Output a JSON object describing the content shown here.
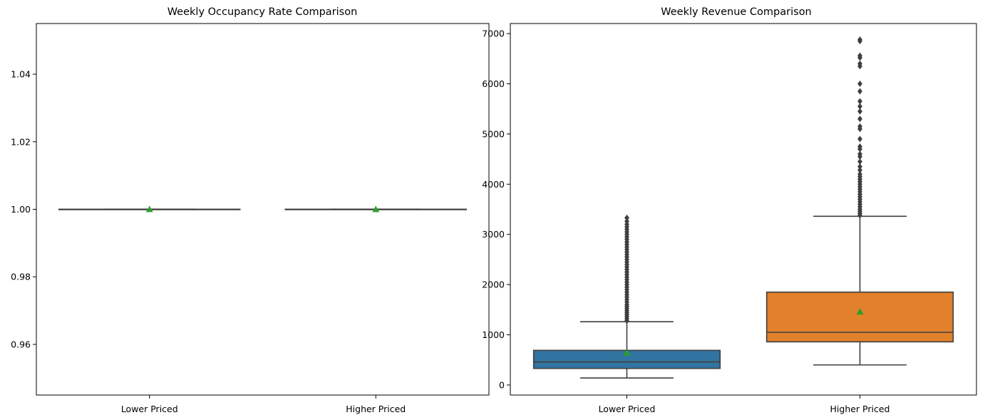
{
  "chart_data": [
    {
      "type": "box",
      "title": "Weekly Occupancy Rate Comparison",
      "xlabel": "",
      "ylabel": "",
      "ylim": [
        0.945,
        1.055
      ],
      "yticks": [
        0.96,
        0.98,
        1.0,
        1.02,
        1.04
      ],
      "ytick_labels": [
        "0.96",
        "0.98",
        "1.00",
        "1.02",
        "1.04"
      ],
      "categories": [
        "Lower Priced",
        "Higher Priced"
      ],
      "boxes": [
        {
          "category": "Lower Priced",
          "whisker_low": 1.0,
          "q1": 1.0,
          "median": 1.0,
          "q3": 1.0,
          "whisker_high": 1.0,
          "mean": 1.0,
          "color": "#1f77b4",
          "outliers": []
        },
        {
          "category": "Higher Priced",
          "whisker_low": 1.0,
          "q1": 1.0,
          "median": 1.0,
          "q3": 1.0,
          "whisker_high": 1.0,
          "mean": 1.0,
          "color": "#ff7f0e",
          "outliers": []
        }
      ],
      "grid": false
    },
    {
      "type": "box",
      "title": "Weekly Revenue Comparison",
      "xlabel": "",
      "ylabel": "",
      "ylim": [
        -200,
        7200
      ],
      "yticks": [
        0,
        1000,
        2000,
        3000,
        4000,
        5000,
        6000,
        7000
      ],
      "ytick_labels": [
        "0",
        "1000",
        "2000",
        "3000",
        "4000",
        "5000",
        "6000",
        "7000"
      ],
      "categories": [
        "Lower Priced",
        "Higher Priced"
      ],
      "boxes": [
        {
          "category": "Lower Priced",
          "whisker_low": 140,
          "q1": 330,
          "median": 460,
          "q3": 690,
          "whisker_high": 1260,
          "mean": 640,
          "color": "#3274a1",
          "outliers": [
            1280,
            1320,
            1360,
            1400,
            1440,
            1480,
            1520,
            1560,
            1600,
            1650,
            1700,
            1750,
            1800,
            1850,
            1900,
            1950,
            2000,
            2050,
            2100,
            2150,
            2200,
            2250,
            2300,
            2350,
            2400,
            2450,
            2500,
            2550,
            2600,
            2650,
            2700,
            2750,
            2800,
            2850,
            2900,
            2950,
            3000,
            3050,
            3100,
            3150,
            3200,
            3260,
            3330
          ]
        },
        {
          "category": "Higher Priced",
          "whisker_low": 400,
          "q1": 860,
          "median": 1050,
          "q3": 1850,
          "whisker_high": 3360,
          "mean": 1460,
          "color": "#e1812c",
          "outliers": [
            3380,
            3420,
            3460,
            3500,
            3550,
            3600,
            3650,
            3700,
            3750,
            3800,
            3850,
            3900,
            3950,
            4000,
            4050,
            4100,
            4150,
            4200,
            4280,
            4350,
            4450,
            4550,
            4600,
            4700,
            4750,
            4900,
            5100,
            5150,
            5300,
            5450,
            5550,
            5650,
            5850,
            6000,
            6350,
            6400,
            6520,
            6560,
            6850,
            6880
          ]
        }
      ],
      "grid": false
    }
  ]
}
